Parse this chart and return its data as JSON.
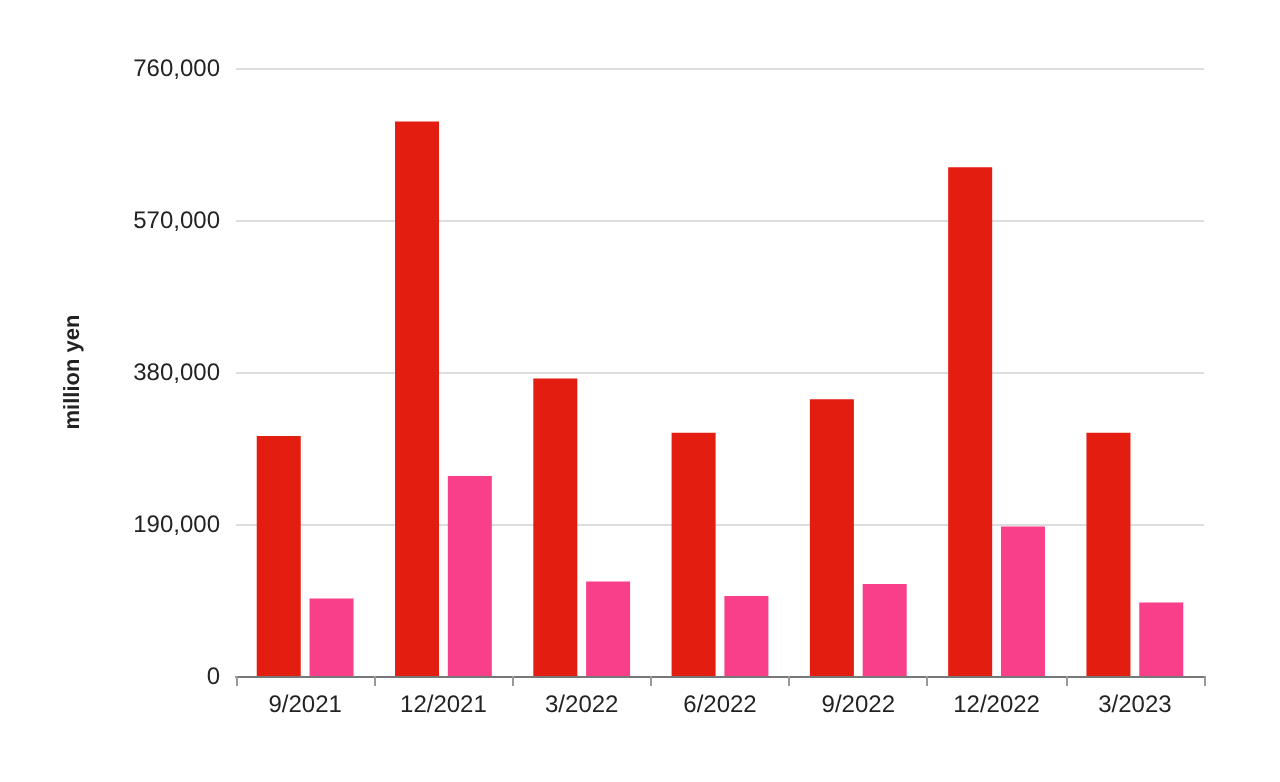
{
  "chart_data": {
    "type": "bar",
    "ylabel": "million yen",
    "categories": [
      "9/2021",
      "12/2021",
      "3/2022",
      "6/2022",
      "9/2022",
      "12/2022",
      "3/2023"
    ],
    "series": [
      {
        "color": "#e31d10",
        "values": [
          300000,
          693000,
          372000,
          304000,
          346000,
          636000,
          304000
        ]
      },
      {
        "color": "#f93f8a",
        "values": [
          97000,
          250000,
          118000,
          100000,
          115000,
          187000,
          92000
        ]
      }
    ],
    "ylim": [
      0,
      760000
    ],
    "yticks": [
      0,
      {
        "value": 190000,
        "label": "190,000"
      },
      {
        "value": 380000,
        "label": "380,000"
      },
      {
        "value": 570000,
        "label": "570,000"
      },
      {
        "value": 760000,
        "label": "760,000"
      }
    ],
    "grid": "y"
  }
}
